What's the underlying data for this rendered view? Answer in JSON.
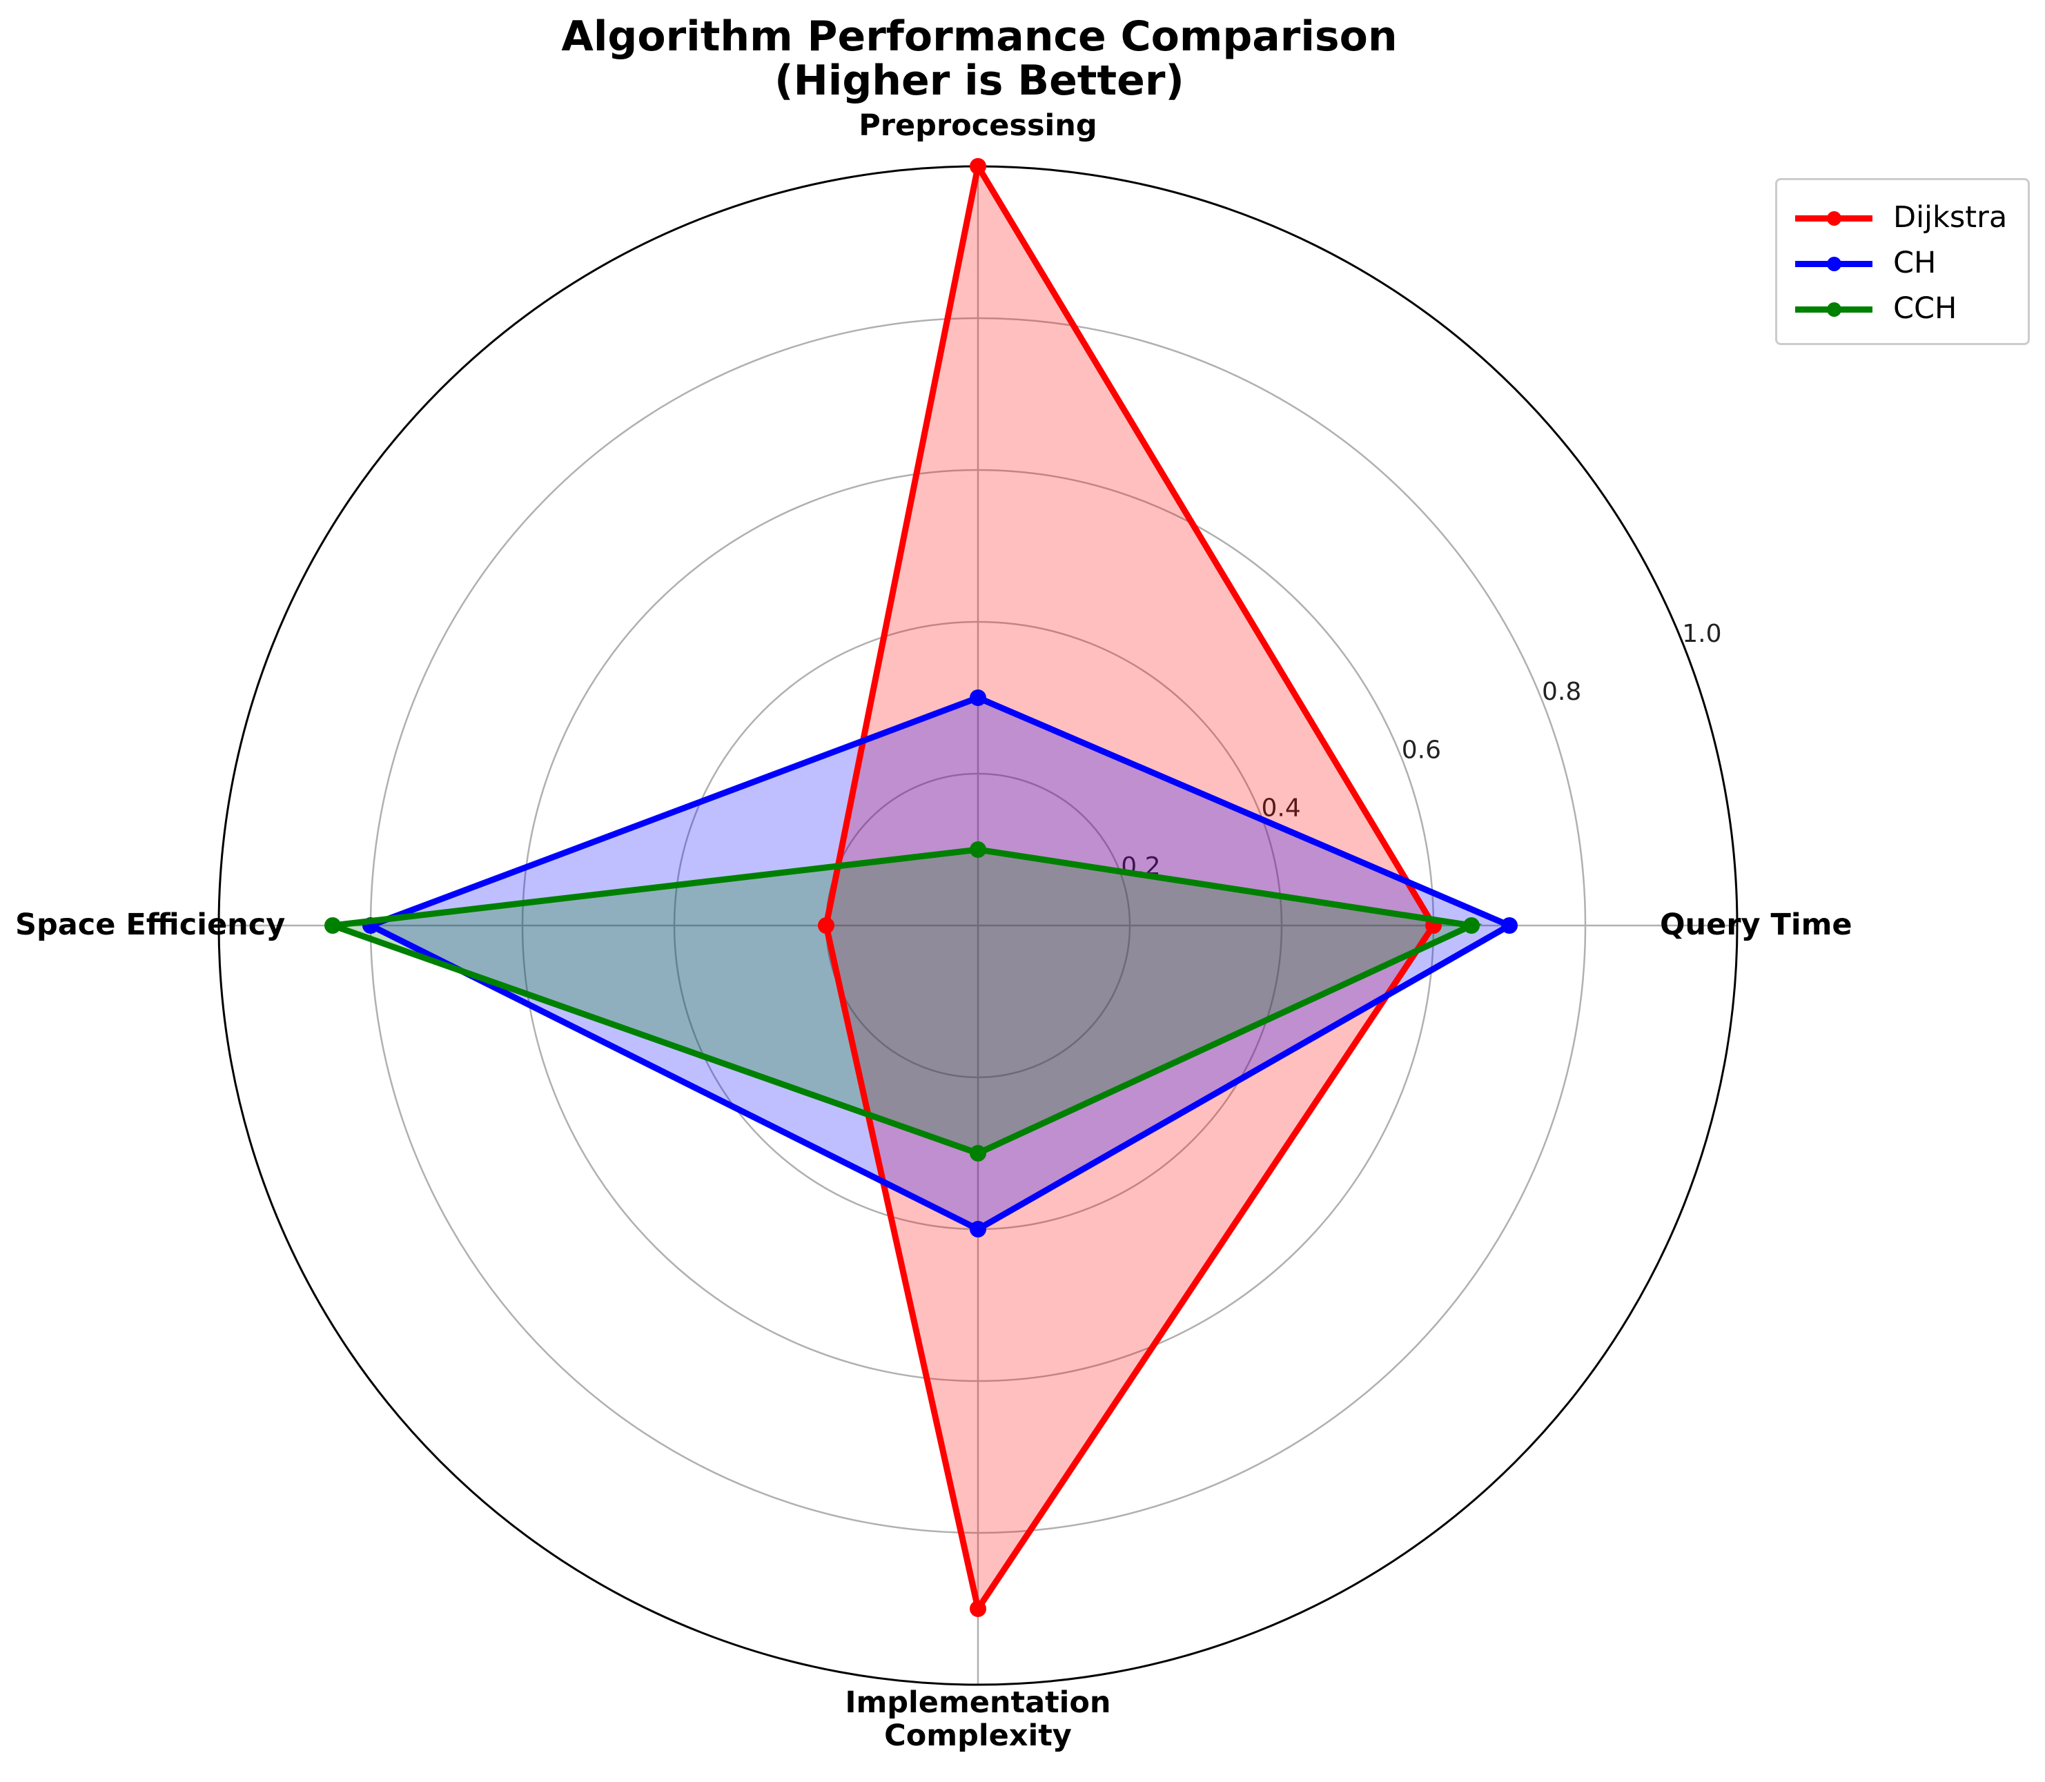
{
  "chart_data": {
    "type": "radar",
    "title": "Algorithm Performance Comparison\n(Higher is Better)",
    "axes": [
      "Query Time",
      "Preprocessing",
      "Space Efficiency",
      "Implementation\nComplexity"
    ],
    "rlim": [
      0,
      1.0
    ],
    "rticks": [
      0.2,
      0.4,
      0.6,
      0.8,
      1.0
    ],
    "rtick_labels": [
      "0.2",
      "0.4",
      "0.6",
      "0.8",
      "1.0"
    ],
    "grid": true,
    "legend_position": "top-right",
    "series": [
      {
        "name": "Dijkstra",
        "values": [
          0.6,
          1.0,
          0.2,
          0.9
        ],
        "color": "#ff0000",
        "fill": "#ff0000"
      },
      {
        "name": "CH",
        "values": [
          0.7,
          0.3,
          0.8,
          0.4
        ],
        "color": "#0000ff",
        "fill": "#0000ff"
      },
      {
        "name": "CCH",
        "values": [
          0.65,
          0.1,
          0.85,
          0.3
        ],
        "color": "#008000",
        "fill": "#008000"
      }
    ]
  }
}
